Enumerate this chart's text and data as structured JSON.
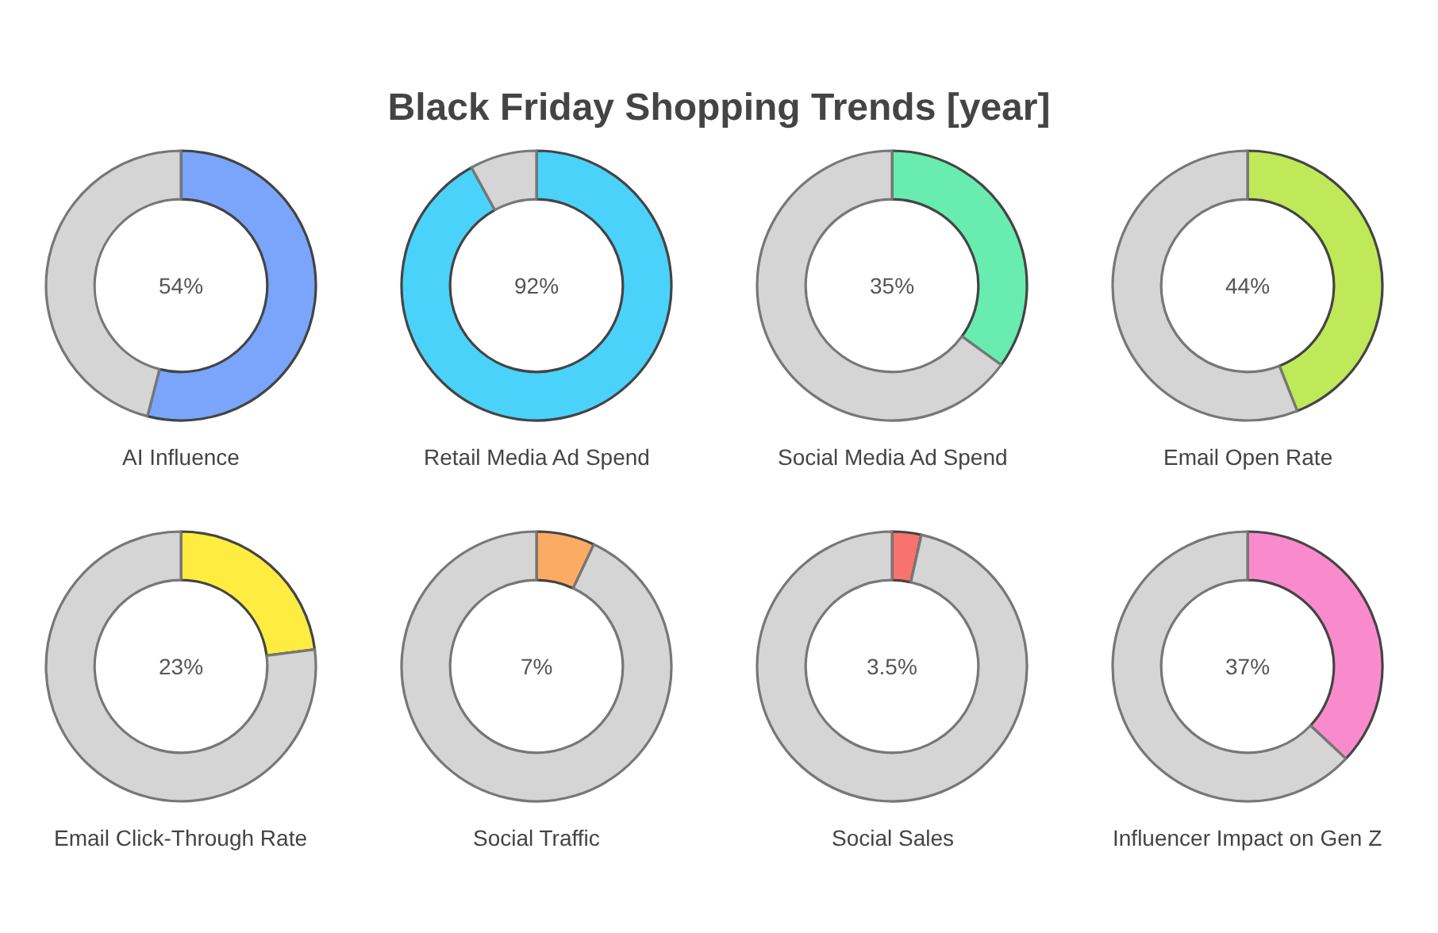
{
  "chart_data": [
    {
      "type": "donut",
      "title": "Black Friday Shopping Trends [year]",
      "xlabel": "AI Influence",
      "categories": [
        null,
        null
      ],
      "values": [
        54,
        46
      ],
      "colors": [
        "#7aa5fb",
        "#d5d5d5"
      ],
      "annotations": [
        "54%"
      ]
    },
    {
      "type": "donut",
      "xlabel": "Retail Media Ad Spend",
      "categories": [
        null,
        null
      ],
      "values": [
        92,
        8
      ],
      "colors": [
        "#4ad2fb",
        "#d5d5d5"
      ],
      "annotations": [
        "92%"
      ]
    },
    {
      "type": "donut",
      "xlabel": "Social Media Ad Spend",
      "categories": [
        null,
        null
      ],
      "values": [
        35,
        65
      ],
      "colors": [
        "#68ecb0",
        "#d5d5d5"
      ],
      "annotations": [
        "35%"
      ]
    },
    {
      "type": "donut",
      "xlabel": "Email Open Rate",
      "categories": [
        null,
        null
      ],
      "values": [
        44,
        56
      ],
      "colors": [
        "#bfe958",
        "#d5d5d5"
      ],
      "annotations": [
        "44%"
      ]
    },
    {
      "type": "donut",
      "xlabel": "Email Click-Through Rate",
      "categories": [
        null,
        null
      ],
      "values": [
        23,
        77
      ],
      "colors": [
        "#ffec40",
        "#d5d5d5"
      ],
      "annotations": [
        "23%"
      ]
    },
    {
      "type": "donut",
      "xlabel": "Social Traffic",
      "categories": [
        null,
        null
      ],
      "values": [
        7,
        93
      ],
      "colors": [
        "#fbab63",
        "#d5d5d5"
      ],
      "annotations": [
        "7%"
      ]
    },
    {
      "type": "donut",
      "xlabel": "Social Sales",
      "categories": [
        null,
        null
      ],
      "values": [
        3.5,
        96.5
      ],
      "colors": [
        "#f8736e",
        "#d5d5d5"
      ],
      "annotations": [
        "3.5%"
      ]
    },
    {
      "type": "donut",
      "xlabel": "Influencer Impact on Gen Z",
      "categories": [
        null,
        null
      ],
      "values": [
        37,
        63
      ],
      "colors": [
        "#f98bcd",
        "#d5d5d5"
      ],
      "annotations": [
        "37%"
      ]
    }
  ]
}
